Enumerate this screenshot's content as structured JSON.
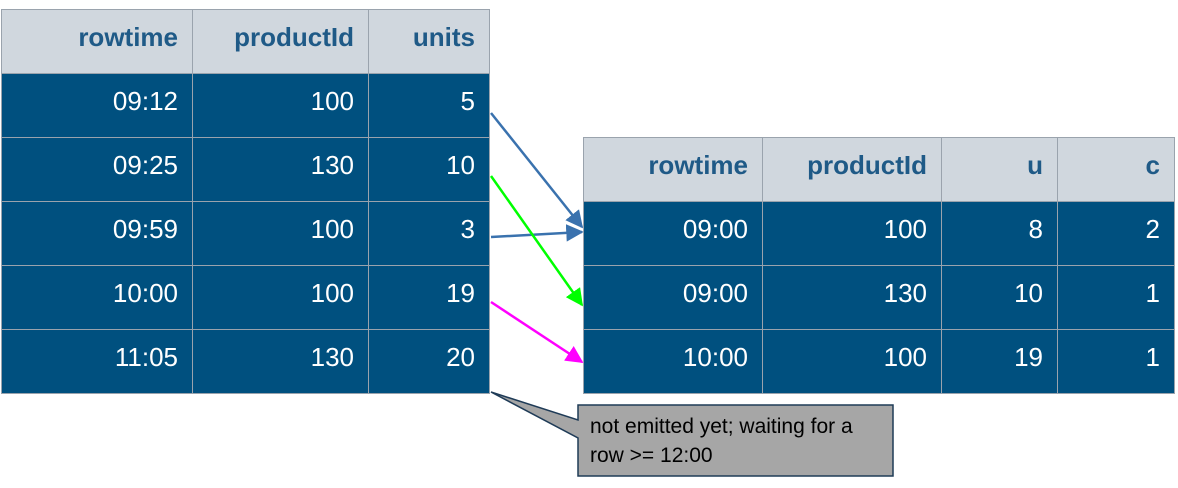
{
  "input_table": {
    "columns": [
      "rowtime",
      "productId",
      "units"
    ],
    "rows": [
      [
        "09:12",
        "100",
        "5"
      ],
      [
        "09:25",
        "130",
        "10"
      ],
      [
        "09:59",
        "100",
        "3"
      ],
      [
        "10:00",
        "100",
        "19"
      ],
      [
        "11:05",
        "130",
        "20"
      ]
    ]
  },
  "output_table": {
    "columns": [
      "rowtime",
      "productId",
      "u",
      "c"
    ],
    "rows": [
      [
        "09:00",
        "100",
        "8",
        "2"
      ],
      [
        "09:00",
        "130",
        "10",
        "1"
      ],
      [
        "10:00",
        "100",
        "19",
        "1"
      ]
    ]
  },
  "callout": {
    "text": "not emitted yet; waiting for a row >= 12:00"
  },
  "colors": {
    "header_bg": "#d0d7de",
    "header_text": "#1f5a87",
    "cell_bg": "#00507f",
    "cell_text": "#ffffff",
    "arrow_blue": "#3a72ae",
    "arrow_green": "#00ff00",
    "arrow_magenta": "#ff00ff",
    "callout_fill": "#a6a6a6"
  }
}
